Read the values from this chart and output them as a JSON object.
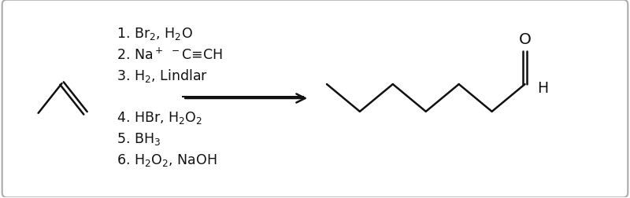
{
  "bg_color": "#ffffff",
  "border_color": "#aaaaaa",
  "text_color": "#111111",
  "figsize": [
    8.0,
    2.53
  ],
  "dpi": 100,
  "reagents": [
    "1. Br$_2$, H$_2$O",
    "2. Na$^+$ $^-$C≡CH",
    "3. H$_2$, Lindlar",
    "4. HBr, H$_2$O$_2$",
    "5. BH$_3$",
    "6. H$_2$O$_2$, NaOH"
  ],
  "fontsize": 12.5,
  "lw": 1.8
}
